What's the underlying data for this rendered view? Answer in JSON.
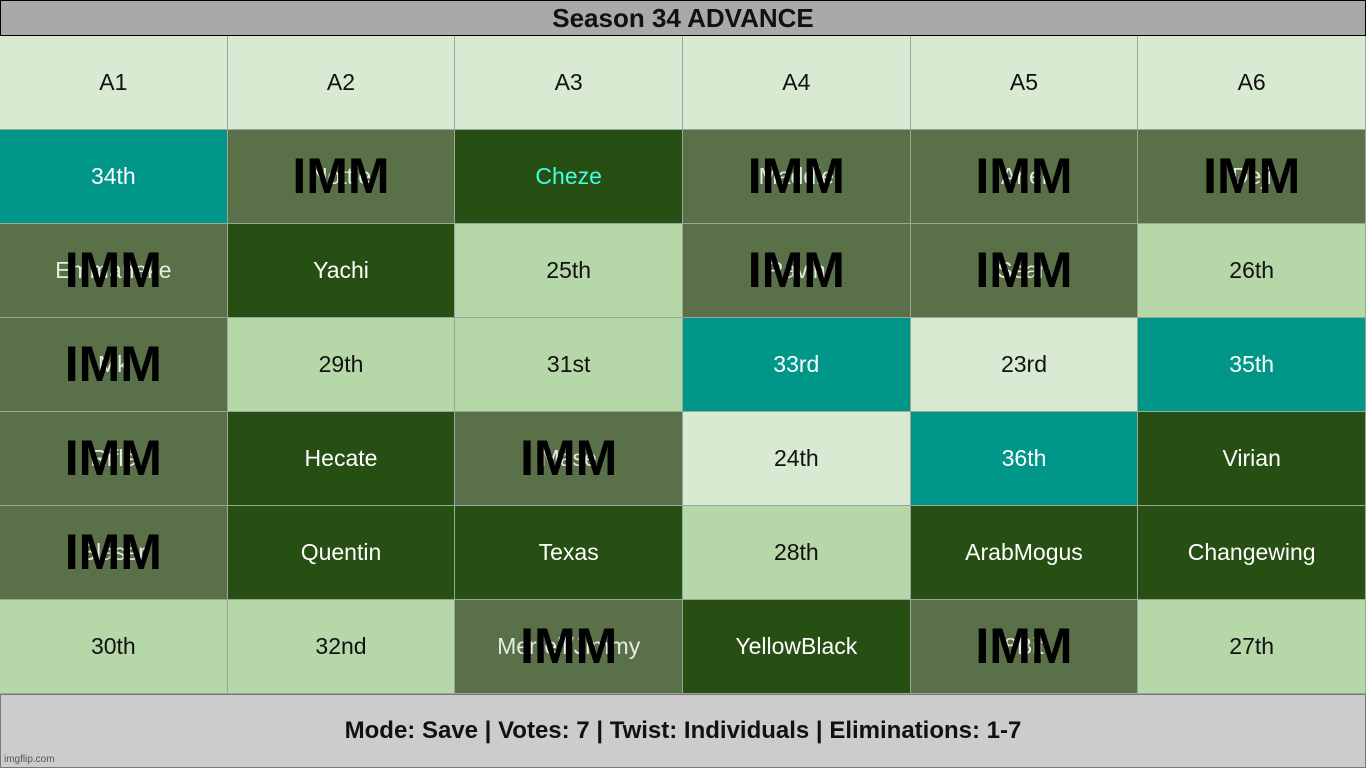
{
  "title": "Season 34 ADVANCE",
  "headers": [
    "A1",
    "A2",
    "A3",
    "A4",
    "A5",
    "A6"
  ],
  "imm_label": "IMM",
  "rows": [
    [
      {
        "text": "34th",
        "style": "teal",
        "imm": false
      },
      {
        "text": "Nottie",
        "style": "mid",
        "imm": true
      },
      {
        "text": "Cheze",
        "style": "dark-cyan",
        "imm": false
      },
      {
        "text": "Maddie",
        "style": "mid",
        "imm": true
      },
      {
        "text": "Ariel",
        "style": "mid",
        "imm": true
      },
      {
        "text": "Deji",
        "style": "mid",
        "imm": true
      }
    ],
    [
      {
        "text": "Emmanake",
        "style": "mid",
        "imm": true
      },
      {
        "text": "Yachi",
        "style": "dark",
        "imm": false
      },
      {
        "text": "25th",
        "style": "light",
        "imm": false
      },
      {
        "text": "Ravin",
        "style": "mid",
        "imm": true
      },
      {
        "text": "Sean",
        "style": "mid",
        "imm": true
      },
      {
        "text": "26th",
        "style": "light",
        "imm": false
      }
    ],
    [
      {
        "text": "Mk",
        "style": "mid",
        "imm": true
      },
      {
        "text": "29th",
        "style": "light",
        "imm": false
      },
      {
        "text": "31st",
        "style": "light",
        "imm": false
      },
      {
        "text": "33rd",
        "style": "teal",
        "imm": false
      },
      {
        "text": "23rd",
        "style": "pale",
        "imm": false
      },
      {
        "text": "35th",
        "style": "teal",
        "imm": false
      }
    ],
    [
      {
        "text": "Rifle",
        "style": "mid",
        "imm": true
      },
      {
        "text": "Hecate",
        "style": "dark",
        "imm": false
      },
      {
        "text": "Mase",
        "style": "mid",
        "imm": true
      },
      {
        "text": "24th",
        "style": "pale",
        "imm": false
      },
      {
        "text": "36th",
        "style": "teal",
        "imm": false
      },
      {
        "text": "Virian",
        "style": "dark",
        "imm": false
      }
    ],
    [
      {
        "text": "Blaser",
        "style": "mid",
        "imm": true
      },
      {
        "text": "Quentin",
        "style": "dark",
        "imm": false
      },
      {
        "text": "Texas",
        "style": "dark",
        "imm": false
      },
      {
        "text": "28th",
        "style": "light",
        "imm": false
      },
      {
        "text": "ArabMogus",
        "style": "dark",
        "imm": false
      },
      {
        "text": "Changewing",
        "style": "dark",
        "imm": false
      }
    ],
    [
      {
        "text": "30th",
        "style": "light",
        "imm": false
      },
      {
        "text": "32nd",
        "style": "light",
        "imm": false
      },
      {
        "text": "Merrell/Jimmy",
        "style": "mid",
        "imm": true
      },
      {
        "text": "YellowBlack",
        "style": "dark",
        "imm": false
      },
      {
        "text": "8Bit",
        "style": "mid",
        "imm": true
      },
      {
        "text": "27th",
        "style": "light",
        "imm": false
      }
    ]
  ],
  "footer": "Mode: Save | Votes: 7 | Twist: Individuals | Eliminations: 1-7",
  "watermark": "imgflip.com",
  "colors": {
    "teal": "#009688",
    "dark": "#274e13",
    "mid": "#5a7049",
    "light": "#b6d7a8",
    "pale": "#d9ead3",
    "title_bg": "#a9a9a9",
    "footer_bg": "#cccccc"
  }
}
